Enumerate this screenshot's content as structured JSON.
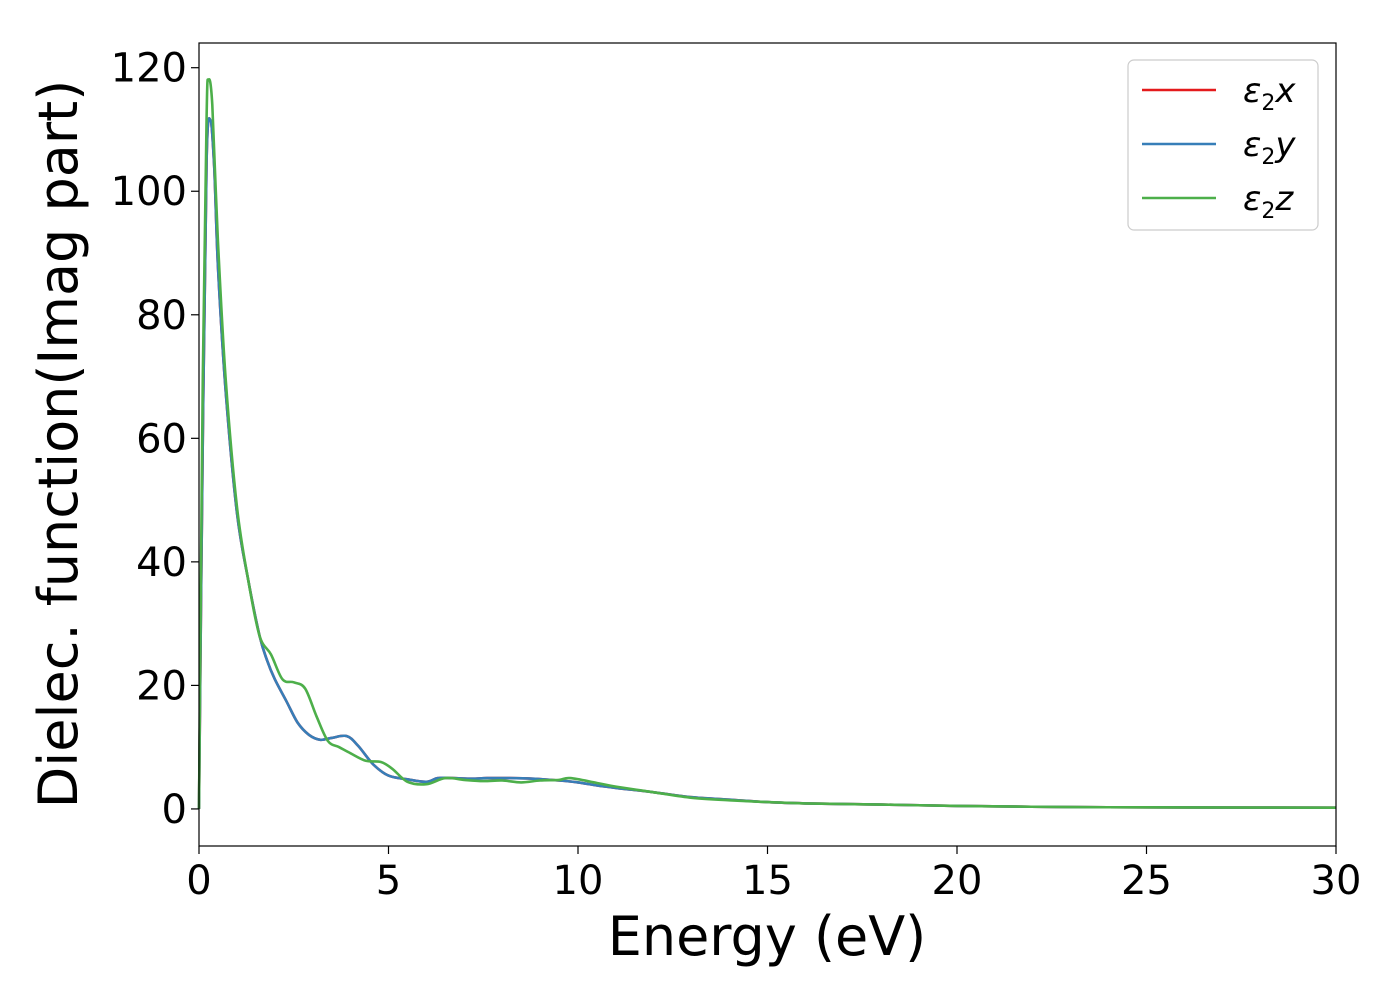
{
  "chart_data": {
    "type": "line",
    "xlabel": "Energy (eV)",
    "ylabel": "Dielec. function(Imag part)",
    "xlim": [
      0,
      30
    ],
    "ylim": [
      -6,
      124
    ],
    "xticks": [
      "0",
      "5",
      "10",
      "15",
      "20",
      "25",
      "30"
    ],
    "yticks": [
      "0",
      "20",
      "40",
      "60",
      "80",
      "100",
      "120"
    ],
    "grid": false,
    "legend_position": "top-right",
    "series": [
      {
        "name": "ε2x",
        "legend_main": "ε",
        "legend_sub": "2",
        "legend_tail": "x",
        "color": "#e41a1c",
        "x": [
          0,
          0.1,
          0.2,
          0.3,
          0.4,
          0.5,
          0.7,
          1.0,
          1.3,
          1.6,
          1.8,
          2.0,
          2.3,
          2.6,
          2.9,
          3.2,
          3.5,
          3.9,
          4.2,
          4.6,
          5.0,
          5.5,
          6.0,
          6.3,
          6.7,
          7.2,
          7.6,
          8.2,
          8.8,
          9.5,
          10.0,
          10.5,
          11.0,
          12.0,
          13.0,
          14.0,
          15.0,
          16.0,
          18.0,
          20.0,
          23.0,
          26.0,
          30.0
        ],
        "y": [
          0,
          60,
          105,
          111.5,
          104,
          88,
          68,
          48,
          37,
          28,
          24,
          21,
          17.5,
          14,
          12,
          11.2,
          11.5,
          11.8,
          10.2,
          7.2,
          5.4,
          4.8,
          4.4,
          5.0,
          5.0,
          4.9,
          5.0,
          5.0,
          4.9,
          4.6,
          4.3,
          3.8,
          3.4,
          2.7,
          1.9,
          1.5,
          1.1,
          0.9,
          0.7,
          0.5,
          0.3,
          0.25,
          0.2
        ]
      },
      {
        "name": "ε2y",
        "legend_main": "ε",
        "legend_sub": "2",
        "legend_tail": "y",
        "color": "#377eb8",
        "x": [
          0,
          0.1,
          0.2,
          0.3,
          0.4,
          0.5,
          0.7,
          1.0,
          1.3,
          1.6,
          1.8,
          2.0,
          2.3,
          2.6,
          2.9,
          3.2,
          3.5,
          3.9,
          4.2,
          4.6,
          5.0,
          5.5,
          6.0,
          6.3,
          6.7,
          7.2,
          7.6,
          8.2,
          8.8,
          9.5,
          10.0,
          10.5,
          11.0,
          12.0,
          13.0,
          14.0,
          15.0,
          16.0,
          18.0,
          20.0,
          23.0,
          26.0,
          30.0
        ],
        "y": [
          0,
          60,
          105,
          111.5,
          104,
          88,
          68,
          48,
          37,
          28,
          24,
          21,
          17.5,
          14,
          12,
          11.2,
          11.5,
          11.8,
          10.2,
          7.2,
          5.4,
          4.8,
          4.4,
          5.0,
          5.0,
          4.9,
          5.0,
          5.0,
          4.9,
          4.6,
          4.3,
          3.8,
          3.4,
          2.7,
          1.9,
          1.5,
          1.1,
          0.9,
          0.7,
          0.5,
          0.3,
          0.25,
          0.2
        ]
      },
      {
        "name": "ε2z",
        "legend_main": "ε",
        "legend_sub": "2",
        "legend_tail": "z",
        "color": "#4daf4a",
        "x": [
          0,
          0.1,
          0.2,
          0.25,
          0.35,
          0.5,
          0.7,
          1.0,
          1.3,
          1.6,
          1.9,
          2.2,
          2.5,
          2.8,
          3.1,
          3.4,
          3.7,
          4.0,
          4.4,
          4.8,
          5.1,
          5.5,
          6.0,
          6.5,
          7.0,
          7.5,
          8.0,
          8.5,
          9.0,
          9.5,
          9.8,
          10.5,
          11.0,
          12.0,
          13.0,
          14.0,
          15.0,
          16.0,
          18.0,
          20.0,
          23.0,
          26.0,
          30.0
        ],
        "y": [
          0,
          70,
          112,
          118,
          114,
          92,
          70,
          49,
          37,
          28,
          25,
          21,
          20.5,
          19.5,
          15,
          11,
          10,
          9,
          7.8,
          7.6,
          6.5,
          4.4,
          4.0,
          5.0,
          4.7,
          4.5,
          4.6,
          4.3,
          4.6,
          4.7,
          5.0,
          4.2,
          3.6,
          2.7,
          1.8,
          1.4,
          1.1,
          0.9,
          0.7,
          0.5,
          0.3,
          0.25,
          0.2
        ]
      }
    ]
  }
}
